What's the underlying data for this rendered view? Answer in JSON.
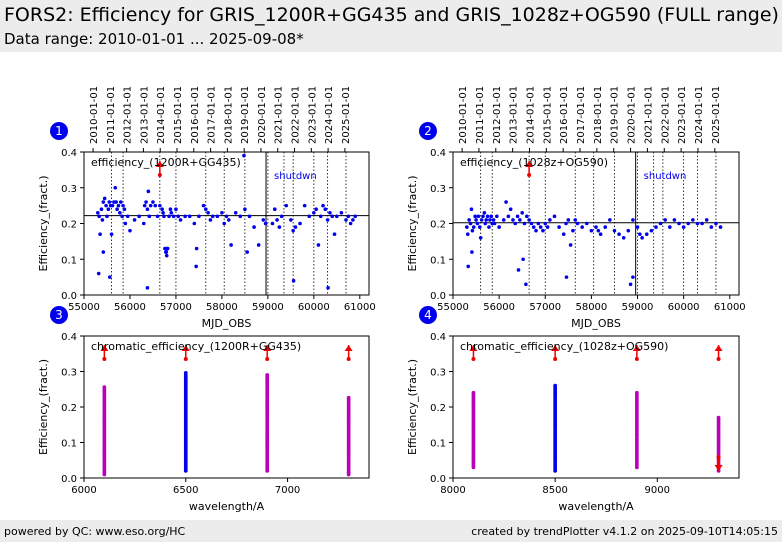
{
  "page": {
    "title": "FORS2: Efficiency for GRIS_1200R+GG435 and GRIS_1028z+OG590 (FULL range)",
    "subtitle": "Data range: 2010-01-01 ... 2025-09-08*",
    "footer_left": "powered by QC: www.eso.org/HC",
    "footer_right": "created by trendPlotter v4.1.2 on 2025-09-10T14:05:15"
  },
  "colors": {
    "points": "#0000ee",
    "chromatic": "#bb00bb",
    "outlier": "#ee0000",
    "shutdown": "#0000ee",
    "header_bg": "#ececec"
  },
  "chart_data": [
    {
      "id": "1",
      "type": "scatter",
      "legend": "efficiency_(1200R+GG435)",
      "annotation": "shutdwn",
      "xlabel": "MJD_OBS",
      "ylabel": "Efficiency_(fract.)",
      "xlim": [
        55000,
        61200
      ],
      "ylim": [
        0,
        0.4
      ],
      "xticks": [
        55000,
        56000,
        57000,
        58000,
        59000,
        60000,
        61000
      ],
      "yticks": [
        0.0,
        0.1,
        0.2,
        0.3,
        0.4
      ],
      "top_ticks": [
        "2010-01-01",
        "2011-01-01",
        "2012-01-01",
        "2013-01-01",
        "2014-01-01",
        "2015-01-01",
        "2016-01-01",
        "2017-01-01",
        "2018-01-01",
        "2019-01-01",
        "2020-01-01",
        "2021-01-01",
        "2022-01-01",
        "2023-01-01",
        "2024-01-01",
        "2025-01-01"
      ],
      "ref_line": 0.222,
      "vlines_dotted": [
        55600,
        55850,
        56650,
        57000,
        57650,
        58050,
        58500,
        59000,
        59350,
        59550,
        60000,
        60300,
        60700
      ],
      "vline_solid": 58960,
      "outliers_up": [
        56650
      ],
      "outliers_down": [],
      "series": [
        {
          "x": [
            55300,
            55330,
            55350,
            55380,
            55400,
            55420,
            55450,
            55480,
            55500,
            55530,
            55550,
            55580,
            55600,
            55620,
            55650,
            55680,
            55700,
            55720,
            55750,
            55780,
            55800,
            55830,
            55850,
            55880,
            55900,
            55950,
            56000,
            56100,
            56200,
            56300,
            56320,
            56350,
            56380,
            56400,
            56420,
            56450,
            56500,
            56550,
            56600,
            56650,
            56700,
            56720,
            56740,
            56760,
            56780,
            56800,
            56820,
            56850,
            56880,
            56900,
            56950,
            57000,
            57050,
            57100,
            57200,
            57300,
            57400,
            57450,
            57500,
            57600,
            57650,
            57700,
            57750,
            57800,
            57900,
            58000,
            58050,
            58100,
            58150,
            58200,
            58300,
            58400,
            58500,
            58550,
            58600,
            58700,
            58800,
            58900,
            58950,
            59100,
            59150,
            59200,
            59250,
            59300,
            59400,
            59500,
            59550,
            59600,
            59700,
            59800,
            59900,
            60000,
            60050,
            60100,
            60150,
            60200,
            60250,
            60300,
            60350,
            60400,
            60450,
            60500,
            60600,
            60700,
            60750,
            60800,
            60850,
            60900,
            55320,
            55420,
            55560,
            56380,
            56790,
            56810,
            57440,
            58480,
            59560,
            60310
          ],
          "y": [
            0.23,
            0.22,
            0.17,
            0.24,
            0.21,
            0.26,
            0.27,
            0.25,
            0.22,
            0.24,
            0.26,
            0.25,
            0.17,
            0.25,
            0.26,
            0.3,
            0.26,
            0.24,
            0.25,
            0.23,
            0.26,
            0.22,
            0.25,
            0.24,
            0.2,
            0.22,
            0.18,
            0.21,
            0.22,
            0.2,
            0.25,
            0.26,
            0.24,
            0.29,
            0.22,
            0.25,
            0.26,
            0.25,
            0.22,
            0.25,
            0.24,
            0.23,
            0.22,
            0.13,
            0.12,
            0.11,
            0.13,
            0.22,
            0.24,
            0.23,
            0.22,
            0.24,
            0.22,
            0.21,
            0.22,
            0.22,
            0.2,
            0.13,
            0.22,
            0.25,
            0.24,
            0.23,
            0.21,
            0.22,
            0.22,
            0.23,
            0.2,
            0.22,
            0.21,
            0.14,
            0.23,
            0.22,
            0.24,
            0.12,
            0.22,
            0.19,
            0.14,
            0.21,
            0.2,
            0.2,
            0.24,
            0.21,
            0.19,
            0.22,
            0.25,
            0.21,
            0.18,
            0.19,
            0.2,
            0.25,
            0.22,
            0.23,
            0.24,
            0.14,
            0.22,
            0.25,
            0.24,
            0.21,
            0.23,
            0.22,
            0.17,
            0.22,
            0.23,
            0.21,
            0.22,
            0.2,
            0.21,
            0.22,
            0.06,
            0.12,
            0.05,
            0.02,
            0.12,
            0.13,
            0.08,
            0.39,
            0.04,
            0.02
          ]
        }
      ]
    },
    {
      "id": "2",
      "type": "scatter",
      "legend": "efficiency_(1028z+OG590)",
      "annotation": "shutdwn",
      "xlabel": "MJD_OBS",
      "ylabel": "Efficiency_(fract.)",
      "xlim": [
        55000,
        61200
      ],
      "ylim": [
        0,
        0.4
      ],
      "xticks": [
        55000,
        56000,
        57000,
        58000,
        59000,
        60000,
        61000
      ],
      "yticks": [
        0.0,
        0.1,
        0.2,
        0.3,
        0.4
      ],
      "top_ticks": [
        "2010-01-01",
        "2011-01-01",
        "2012-01-01",
        "2013-01-01",
        "2014-01-01",
        "2015-01-01",
        "2016-01-01",
        "2017-01-01",
        "2018-01-01",
        "2019-01-01",
        "2020-01-01",
        "2021-01-01",
        "2022-01-01",
        "2023-01-01",
        "2024-01-01",
        "2025-01-01"
      ],
      "ref_line": 0.202,
      "vlines_dotted": [
        55600,
        55850,
        56650,
        57000,
        57650,
        58050,
        58500,
        59000,
        59350,
        59550,
        60000,
        60300,
        60700
      ],
      "vline_solid": 58960,
      "outliers_up": [
        56650
      ],
      "outliers_down": [],
      "series": [
        {
          "x": [
            55300,
            55320,
            55350,
            55380,
            55400,
            55420,
            55450,
            55480,
            55500,
            55530,
            55550,
            55580,
            55600,
            55620,
            55650,
            55680,
            55700,
            55720,
            55750,
            55780,
            55800,
            55830,
            55850,
            55880,
            55900,
            55950,
            56000,
            56100,
            56150,
            56200,
            56250,
            56300,
            56350,
            56400,
            56450,
            56500,
            56550,
            56600,
            56650,
            56700,
            56750,
            56800,
            56850,
            56900,
            56950,
            57000,
            57050,
            57100,
            57200,
            57300,
            57400,
            57450,
            57500,
            57550,
            57600,
            57650,
            57700,
            57800,
            57900,
            58000,
            58100,
            58150,
            58200,
            58300,
            58400,
            58500,
            58600,
            58700,
            58800,
            58900,
            59000,
            59050,
            59100,
            59200,
            59300,
            59400,
            59500,
            59600,
            59700,
            59800,
            59900,
            60000,
            60100,
            60200,
            60300,
            60400,
            60500,
            60600,
            60700,
            60800,
            55330,
            55410,
            56420,
            56520,
            57460,
            58850,
            58900,
            56580
          ],
          "y": [
            0.19,
            0.17,
            0.21,
            0.2,
            0.24,
            0.18,
            0.19,
            0.22,
            0.21,
            0.2,
            0.22,
            0.19,
            0.16,
            0.21,
            0.22,
            0.23,
            0.2,
            0.21,
            0.22,
            0.19,
            0.21,
            0.22,
            0.2,
            0.21,
            0.2,
            0.22,
            0.19,
            0.21,
            0.26,
            0.22,
            0.24,
            0.21,
            0.2,
            0.22,
            0.21,
            0.23,
            0.2,
            0.22,
            0.21,
            0.2,
            0.19,
            0.18,
            0.2,
            0.19,
            0.18,
            0.2,
            0.19,
            0.21,
            0.22,
            0.19,
            0.17,
            0.2,
            0.21,
            0.14,
            0.18,
            0.21,
            0.2,
            0.19,
            0.2,
            0.18,
            0.19,
            0.18,
            0.17,
            0.19,
            0.21,
            0.18,
            0.17,
            0.16,
            0.18,
            0.21,
            0.19,
            0.17,
            0.16,
            0.17,
            0.18,
            0.19,
            0.2,
            0.21,
            0.19,
            0.21,
            0.2,
            0.19,
            0.2,
            0.21,
            0.2,
            0.2,
            0.21,
            0.19,
            0.2,
            0.19,
            0.08,
            0.12,
            0.07,
            0.1,
            0.05,
            0.03,
            0.05,
            0.03
          ]
        }
      ]
    },
    {
      "id": "3",
      "type": "scatter",
      "legend": "chromatic_efficiency_(1200R+GG435)",
      "xlabel": "wavelength/A",
      "ylabel": "Efficiency_(fract.)",
      "xlim": [
        6000,
        7400
      ],
      "ylim": [
        0,
        0.4
      ],
      "xticks": [
        6000,
        6500,
        7000
      ],
      "yticks": [
        0.0,
        0.1,
        0.2,
        0.3,
        0.4
      ],
      "outliers_up": [
        6100,
        6500,
        6900,
        7300
      ],
      "outliers_down": [],
      "columns": [
        {
          "x": 6100,
          "ymin": 0.01,
          "ymax": 0.26,
          "color": "chromatic"
        },
        {
          "x": 6500,
          "ymin": 0.02,
          "ymax": 0.3,
          "color": "points"
        },
        {
          "x": 6900,
          "ymin": 0.02,
          "ymax": 0.29,
          "color": "chromatic"
        },
        {
          "x": 7300,
          "ymin": 0.01,
          "ymax": 0.23,
          "color": "chromatic"
        }
      ]
    },
    {
      "id": "4",
      "type": "scatter",
      "legend": "chromatic_efficiency_(1028z+OG590)",
      "xlabel": "wavelength/A",
      "ylabel": "Efficiency_(fract.)",
      "xlim": [
        8000,
        9400
      ],
      "ylim": [
        0,
        0.4
      ],
      "xticks": [
        8000,
        8500,
        9000
      ],
      "yticks": [
        0.0,
        0.1,
        0.2,
        0.3,
        0.4
      ],
      "outliers_up": [
        8100,
        8500,
        8900,
        9300
      ],
      "outliers_down": [
        9300
      ],
      "columns": [
        {
          "x": 8100,
          "ymin": 0.03,
          "ymax": 0.24,
          "color": "chromatic"
        },
        {
          "x": 8500,
          "ymin": 0.02,
          "ymax": 0.26,
          "color": "points"
        },
        {
          "x": 8900,
          "ymin": 0.03,
          "ymax": 0.24,
          "color": "chromatic"
        },
        {
          "x": 9300,
          "ymin": 0.02,
          "ymax": 0.17,
          "color": "chromatic"
        }
      ]
    }
  ]
}
